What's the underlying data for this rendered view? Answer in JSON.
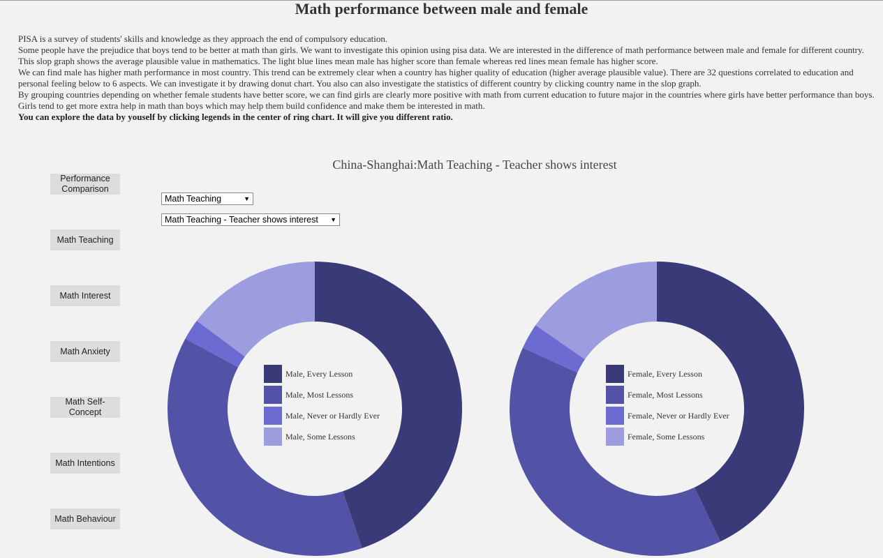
{
  "page": {
    "title": "Math performance between male and female",
    "intro": [
      "PISA is a survey of students' skills and knowledge as they approach the end of compulsory education.",
      "Some people have the prejudice that boys tend to be better at math than girls. We want to investigate this opinion using pisa data. We are interested in the difference of math performance between male and female for different country.",
      "This slop graph shows the average plausible value in mathematics. The light blue lines mean male has higher score than female whereas red lines mean female has higher score.",
      "We can find male has higher math performance in most country. This trend can be extremely clear when a country has higher quality of education (higher average plausible value). There are 32 questions correlated to education and personal feeling below to 6 aspects. We can investigate it by drawing donut chart. You also can also investigate the statistics of different country by clicking country name in the slop graph.",
      "By grouping countries depending on whether female students have better score, we can find girls are clearly more positive with math from current education to future major in the countries where girls have better performance than boys. Girls tend to get more extra help in math than boys which may help them build confidence and make them be interested in math.",
      "You can explore the data by youself by clicking legends in the center of ring chart. It will give you different ratio."
    ]
  },
  "sidebar": {
    "buttons": [
      "Performance Comparison",
      "Math Teaching",
      "Math Interest",
      "Math Anxiety",
      "Math Self-Concept",
      "Math Intentions",
      "Math Behaviour"
    ]
  },
  "controls": {
    "category_select": "Math Teaching",
    "question_select": "Math Teaching - Teacher shows interest"
  },
  "colors": {
    "every_lesson": "#3a3a78",
    "most_lessons": "#5252a6",
    "never": "#6b6bd2",
    "some_lessons": "#9c9cdf",
    "background": "#f2f2f2"
  },
  "chart_data": [
    {
      "type": "pie",
      "title": "China-Shanghai:Math Teaching - Teacher shows interest",
      "series": [
        {
          "name": "Male, Every Lesson",
          "value": 44.8
        },
        {
          "name": "Male, Most Lessons",
          "value": 38.1
        },
        {
          "name": "Male, Never or Hardly Ever",
          "value": 2.3
        },
        {
          "name": "Male, Some Lessons",
          "value": 14.8
        }
      ]
    },
    {
      "type": "pie",
      "title": "China-Shanghai:Math Teaching - Teacher shows interest",
      "series": [
        {
          "name": "Female, Every Lesson",
          "value": 42.9
        },
        {
          "name": "Female, Most Lessons",
          "value": 38.9
        },
        {
          "name": "Female, Never or Hardly Ever",
          "value": 2.8
        },
        {
          "name": "Female, Some Lessons",
          "value": 15.4
        }
      ]
    }
  ]
}
